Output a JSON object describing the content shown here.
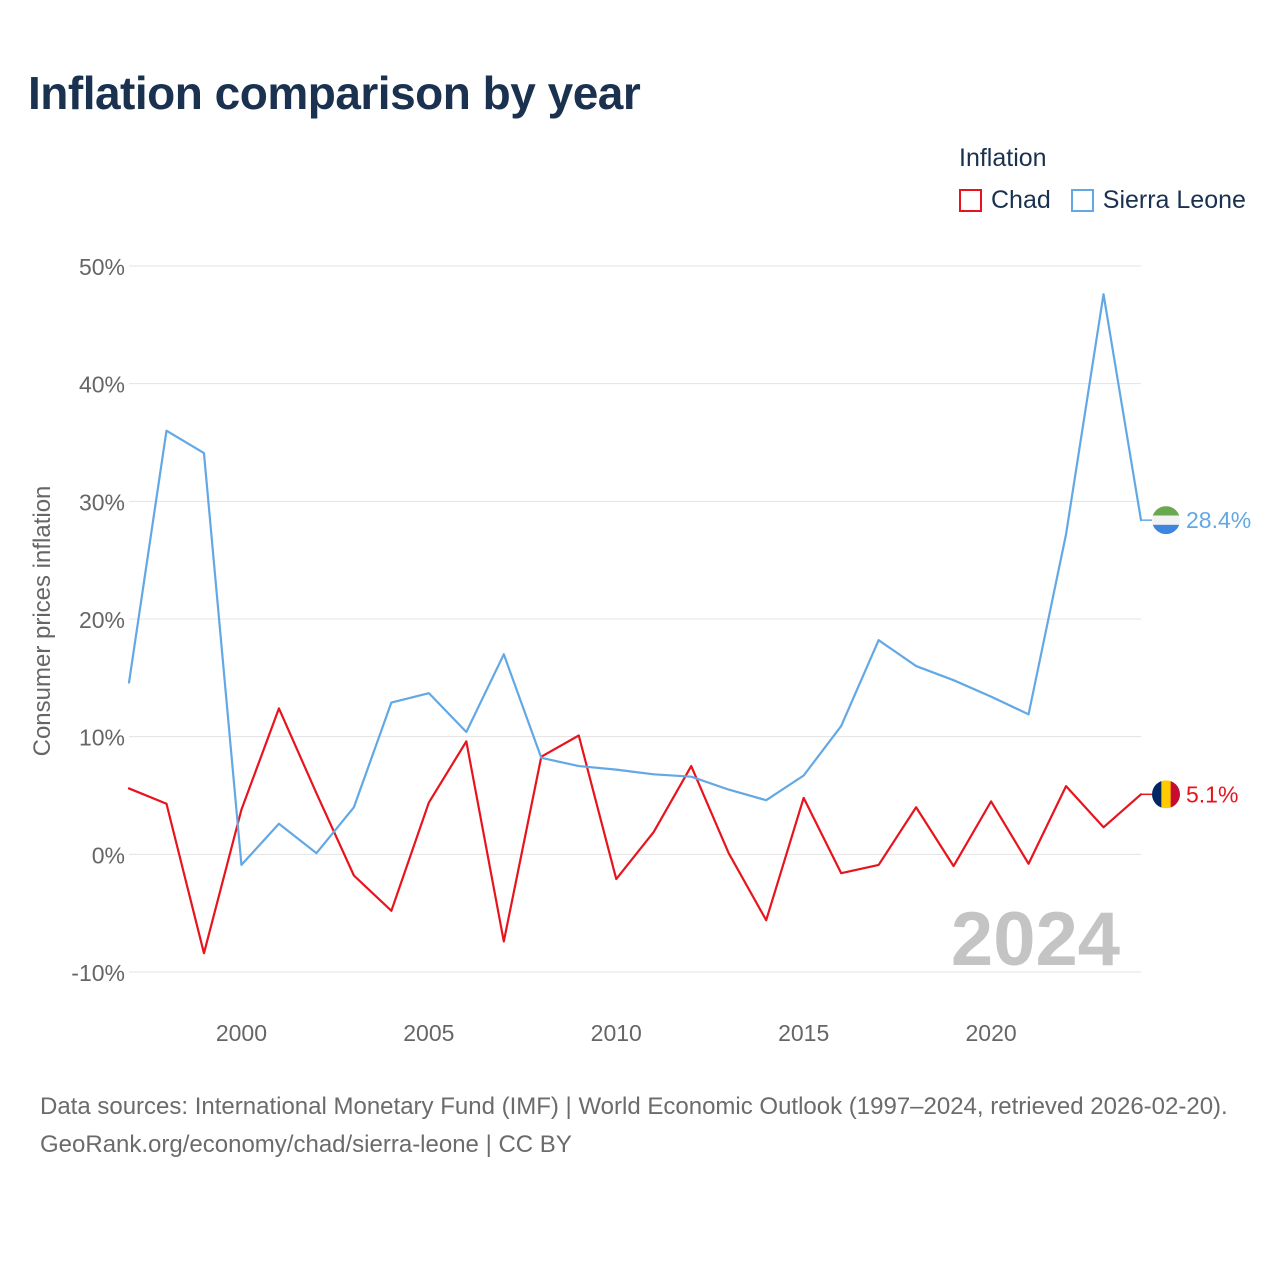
{
  "title": "Inflation comparison by year",
  "legend": {
    "title": "Inflation"
  },
  "watermark_year": "2024",
  "footer": {
    "sources": "Data sources: International Monetary Fund (IMF) | World Economic Outlook (1997–2024, retrieved 2026-02-20).",
    "credit": "GeoRank.org/economy/chad/sierra-leone | CC BY"
  },
  "chart_data": {
    "type": "line",
    "title": "Inflation comparison by year",
    "xlabel": "",
    "ylabel": "Consumer prices inflation",
    "xlim": [
      1997,
      2024
    ],
    "ylim": [
      -10,
      50
    ],
    "x_ticks": [
      2000,
      2005,
      2010,
      2015,
      2020
    ],
    "x_tick_labels": [
      "2000",
      "2005",
      "2010",
      "2015",
      "2020"
    ],
    "y_ticks": [
      -10,
      0,
      10,
      20,
      30,
      40,
      50
    ],
    "y_tick_labels": [
      "-10%",
      "0%",
      "10%",
      "20%",
      "30%",
      "40%",
      "50%"
    ],
    "grid": true,
    "legend_position": "top-right",
    "x": [
      1997,
      1998,
      1999,
      2000,
      2001,
      2002,
      2003,
      2004,
      2005,
      2006,
      2007,
      2008,
      2009,
      2010,
      2011,
      2012,
      2013,
      2014,
      2015,
      2016,
      2017,
      2018,
      2019,
      2020,
      2021,
      2022,
      2023,
      2024
    ],
    "series": [
      {
        "name": "Chad",
        "color": "#e8141d",
        "end_label": "5.1%",
        "values": [
          5.6,
          4.3,
          -8.4,
          3.8,
          12.4,
          5.2,
          -1.8,
          -4.8,
          4.4,
          9.6,
          -7.4,
          8.3,
          10.1,
          -2.1,
          1.9,
          7.5,
          0.1,
          -5.6,
          4.8,
          -1.6,
          -0.9,
          4.0,
          -1.0,
          4.5,
          -0.8,
          5.8,
          2.3,
          5.1
        ]
      },
      {
        "name": "Sierra Leone",
        "color": "#62a8e5",
        "end_label": "28.4%",
        "values": [
          14.6,
          36.0,
          34.1,
          -0.9,
          2.6,
          0.1,
          4.0,
          12.9,
          13.7,
          10.4,
          17.0,
          8.2,
          7.5,
          7.2,
          6.8,
          6.6,
          5.5,
          4.6,
          6.7,
          10.9,
          18.2,
          16.0,
          14.8,
          13.4,
          11.9,
          27.2,
          47.6,
          28.4
        ]
      }
    ]
  }
}
